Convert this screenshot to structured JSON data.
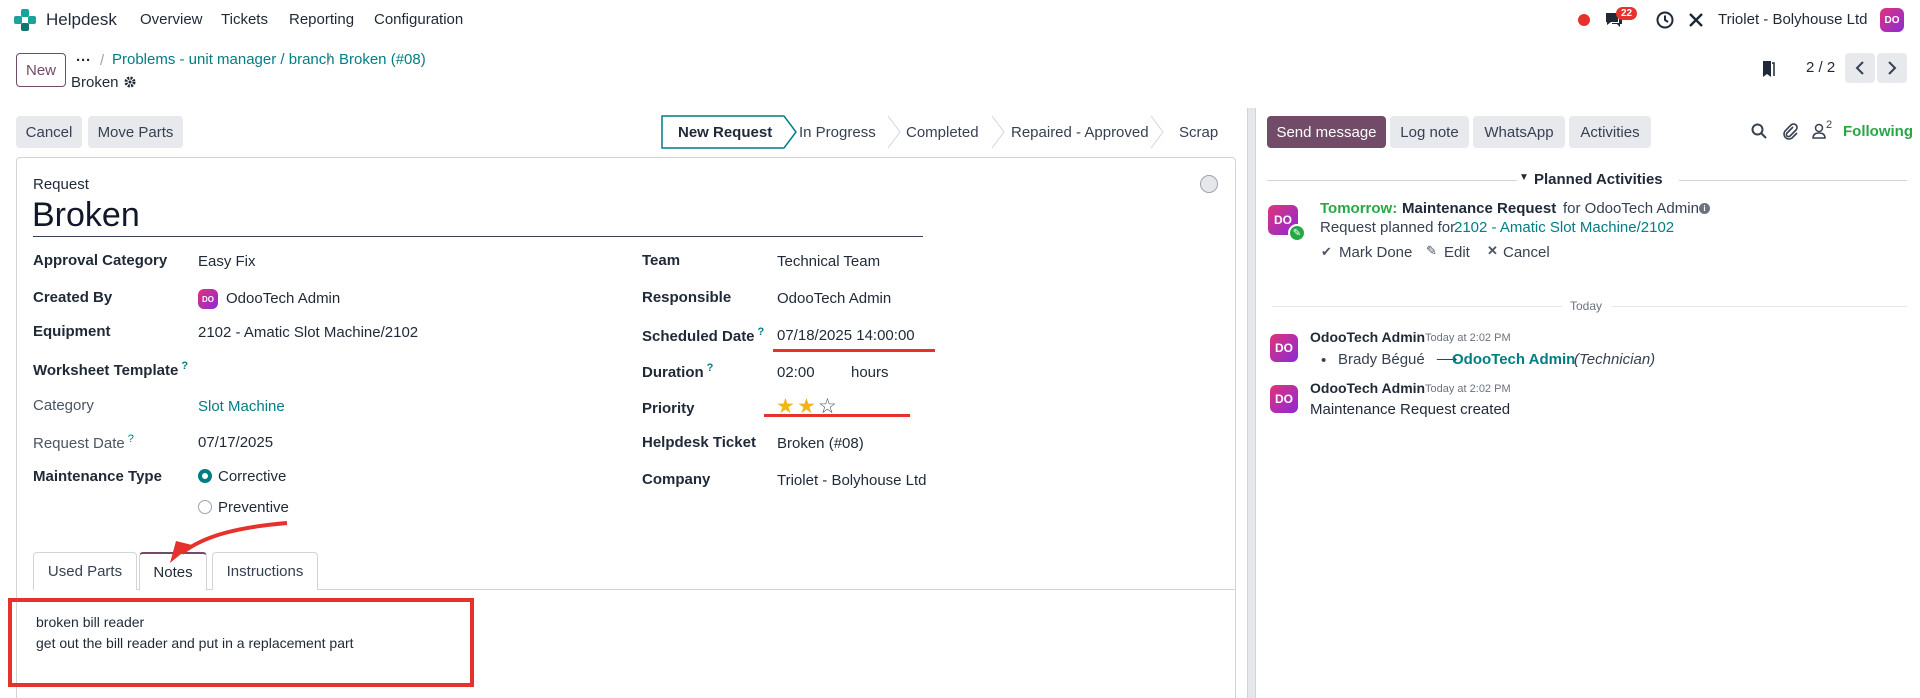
{
  "topbar": {
    "app_name": "Helpdesk",
    "menu": [
      "Overview",
      "Tickets",
      "Reporting",
      "Configuration"
    ],
    "messages_badge": "22",
    "company": "Triolet - Bolyhouse Ltd",
    "avatar_text": "DO"
  },
  "control": {
    "new_label": "New",
    "breadcrumb": [
      "Problems - unit manager / branch",
      "Broken (#08)"
    ],
    "record_name": "Broken",
    "pager": "2 / 2"
  },
  "actions": {
    "cancel": "Cancel",
    "move_parts": "Move Parts",
    "stages": [
      "New Request",
      "In Progress",
      "Completed",
      "Repaired - Approved",
      "Scrap"
    ]
  },
  "form": {
    "request_label": "Request",
    "title": "Broken",
    "left": {
      "approval_category": {
        "label": "Approval Category",
        "value": "Easy Fix"
      },
      "created_by": {
        "label": "Created By",
        "value": "OdooTech Admin"
      },
      "equipment": {
        "label": "Equipment",
        "value": "2102 - Amatic Slot Machine/2102"
      },
      "worksheet_template": {
        "label": "Worksheet Template",
        "help": "?"
      },
      "category": {
        "label": "Category",
        "value": "Slot Machine"
      },
      "request_date": {
        "label": "Request Date",
        "help": "?",
        "value": "07/17/2025"
      },
      "maintenance_type": {
        "label": "Maintenance Type",
        "options": [
          "Corrective",
          "Preventive"
        ],
        "selected": "Corrective"
      }
    },
    "right": {
      "team": {
        "label": "Team",
        "value": "Technical Team"
      },
      "responsible": {
        "label": "Responsible",
        "value": "OdooTech Admin"
      },
      "scheduled_date": {
        "label": "Scheduled Date",
        "help": "?",
        "value": "07/18/2025 14:00:00"
      },
      "duration": {
        "label": "Duration",
        "help": "?",
        "value": "02:00",
        "unit": "hours"
      },
      "priority": {
        "label": "Priority",
        "stars_filled": 2,
        "stars_total": 3
      },
      "helpdesk_ticket": {
        "label": "Helpdesk Ticket",
        "value": "Broken (#08)"
      },
      "company": {
        "label": "Company",
        "value": "Triolet - Bolyhouse Ltd"
      }
    },
    "tabs": [
      "Used Parts",
      "Notes",
      "Instructions"
    ],
    "active_tab": "Notes",
    "notes": [
      "broken bill reader",
      "get out the bill reader and put in a replacement part"
    ]
  },
  "chatter": {
    "send_message": "Send message",
    "log_note": "Log note",
    "whatsapp": "WhatsApp",
    "activities": "Activities",
    "followers_count": "2",
    "following": "Following",
    "planned_title": "Planned Activities",
    "activity": {
      "when": "Tomorrow:",
      "name": "Maintenance Request",
      "for": "for OdooTech Admin",
      "planned_prefix": "Request planned for",
      "planned_link": "2102 - Amatic Slot Machine/2102",
      "mark_done": "Mark Done",
      "edit": "Edit",
      "cancel": "Cancel"
    },
    "today_label": "Today",
    "messages": [
      {
        "author": "OdooTech Admin",
        "time": "Today at 2:02 PM",
        "from": "Brady Bégué",
        "to": "OdooTech Admin",
        "role": "(Technician)"
      },
      {
        "author": "OdooTech Admin",
        "time": "Today at 2:02 PM",
        "body": "Maintenance Request created"
      }
    ]
  },
  "colors": {
    "brand": "#714b67",
    "link": "#017e84",
    "annotation_red": "#e5322d",
    "star": "#f3b51c"
  }
}
